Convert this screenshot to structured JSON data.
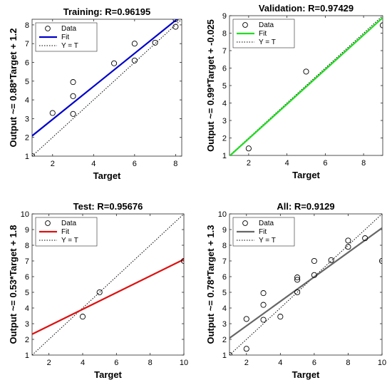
{
  "chart_data": [
    {
      "type": "scatter",
      "title": "Training: R=0.96195",
      "xlabel": "Target",
      "ylabel": "Output ~= 0.88*Target + 1.2",
      "xlim": [
        1,
        8.3
      ],
      "ylim": [
        1,
        8.3
      ],
      "xticks": [
        2,
        4,
        6,
        8
      ],
      "yticks": [
        1,
        2,
        3,
        4,
        5,
        6,
        7,
        8
      ],
      "fit": {
        "slope": 0.88,
        "intercept": 1.2,
        "color": "#0000cc"
      },
      "points": [
        [
          1,
          1
        ],
        [
          2,
          3.3
        ],
        [
          3,
          3.25
        ],
        [
          3,
          4.2
        ],
        [
          3,
          4.95
        ],
        [
          5,
          5.95
        ],
        [
          6,
          6.1
        ],
        [
          6,
          7.0
        ],
        [
          7,
          7.05
        ],
        [
          8,
          7.9
        ],
        [
          8,
          8.3
        ]
      ],
      "legend": {
        "position": "top-left",
        "entries": [
          "Data",
          "Fit",
          "Y = T"
        ]
      }
    },
    {
      "type": "scatter",
      "title": "Validation: R=0.97429",
      "xlabel": "Target",
      "ylabel": "Output ~= 0.99*Target + -0.025",
      "xlim": [
        1,
        9
      ],
      "ylim": [
        1,
        9
      ],
      "xticks": [
        2,
        4,
        6,
        8
      ],
      "yticks": [
        1,
        2,
        3,
        4,
        5,
        6,
        7,
        8,
        9
      ],
      "fit": {
        "slope": 0.99,
        "intercept": -0.025,
        "color": "#22dd22"
      },
      "points": [
        [
          2,
          1.4
        ],
        [
          5,
          5.8
        ],
        [
          9,
          8.45
        ]
      ],
      "legend": {
        "position": "top-left",
        "entries": [
          "Data",
          "Fit",
          "Y = T"
        ]
      }
    },
    {
      "type": "scatter",
      "title": "Test: R=0.95676",
      "xlabel": "Target",
      "ylabel": "Output ~= 0.53*Target + 1.8",
      "xlim": [
        1,
        10
      ],
      "ylim": [
        1,
        10
      ],
      "xticks": [
        2,
        4,
        6,
        8,
        10
      ],
      "yticks": [
        1,
        2,
        3,
        4,
        5,
        6,
        7,
        8,
        9,
        10
      ],
      "fit": {
        "slope": 0.53,
        "intercept": 1.8,
        "color": "#dd1111"
      },
      "points": [
        [
          4,
          3.45
        ],
        [
          5,
          5.0
        ],
        [
          10,
          7.0
        ]
      ],
      "legend": {
        "position": "top-left",
        "entries": [
          "Data",
          "Fit",
          "Y = T"
        ]
      }
    },
    {
      "type": "scatter",
      "title": "All: R=0.9129",
      "xlabel": "Target",
      "ylabel": "Output ~= 0.78*Target + 1.3",
      "xlim": [
        1,
        10
      ],
      "ylim": [
        1,
        10
      ],
      "xticks": [
        2,
        4,
        6,
        8,
        10
      ],
      "yticks": [
        1,
        2,
        3,
        4,
        5,
        6,
        7,
        8,
        9,
        10
      ],
      "fit": {
        "slope": 0.78,
        "intercept": 1.3,
        "color": "#666666"
      },
      "points": [
        [
          1,
          1
        ],
        [
          2,
          1.4
        ],
        [
          2,
          3.3
        ],
        [
          3,
          3.25
        ],
        [
          3,
          4.2
        ],
        [
          3,
          4.95
        ],
        [
          4,
          3.45
        ],
        [
          5,
          5.0
        ],
        [
          5,
          5.8
        ],
        [
          5,
          5.95
        ],
        [
          6,
          6.1
        ],
        [
          6,
          7.0
        ],
        [
          7,
          7.05
        ],
        [
          8,
          7.9
        ],
        [
          8,
          8.3
        ],
        [
          9,
          8.45
        ],
        [
          10,
          7.0
        ]
      ],
      "legend": {
        "position": "top-left",
        "entries": [
          "Data",
          "Fit",
          "Y = T"
        ]
      }
    }
  ]
}
